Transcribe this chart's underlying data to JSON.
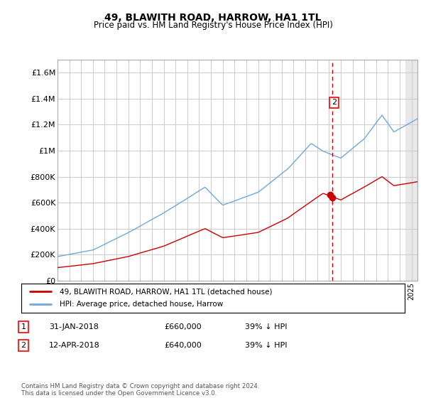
{
  "title": "49, BLAWITH ROAD, HARROW, HA1 1TL",
  "subtitle": "Price paid vs. HM Land Registry's House Price Index (HPI)",
  "ylabel_ticks": [
    "£0",
    "£200K",
    "£400K",
    "£600K",
    "£800K",
    "£1M",
    "£1.2M",
    "£1.4M",
    "£1.6M"
  ],
  "ytick_values": [
    0,
    200000,
    400000,
    600000,
    800000,
    1000000,
    1200000,
    1400000,
    1600000
  ],
  "ylim": [
    0,
    1700000
  ],
  "xlim_start": 1995.0,
  "xlim_end": 2025.5,
  "hpi_color": "#6fa8dc",
  "price_color": "#cc0000",
  "dashed_line_color": "#cc0000",
  "marker2_date": 2018.28,
  "marker1_price": 660000,
  "marker2_price": 640000,
  "marker2_label": "2",
  "legend_entries": [
    "49, BLAWITH ROAD, HARROW, HA1 1TL (detached house)",
    "HPI: Average price, detached house, Harrow"
  ],
  "table_rows": [
    [
      "1",
      "31-JAN-2018",
      "£660,000",
      "39% ↓ HPI"
    ],
    [
      "2",
      "12-APR-2018",
      "£640,000",
      "39% ↓ HPI"
    ]
  ],
  "footer": "Contains HM Land Registry data © Crown copyright and database right 2024.\nThis data is licensed under the Open Government Licence v3.0.",
  "background_color": "#ffffff",
  "grid_color": "#cccccc",
  "shaded_region_start": 2024.5,
  "shaded_region_end": 2025.5,
  "shaded_color": "#e8e8e8"
}
